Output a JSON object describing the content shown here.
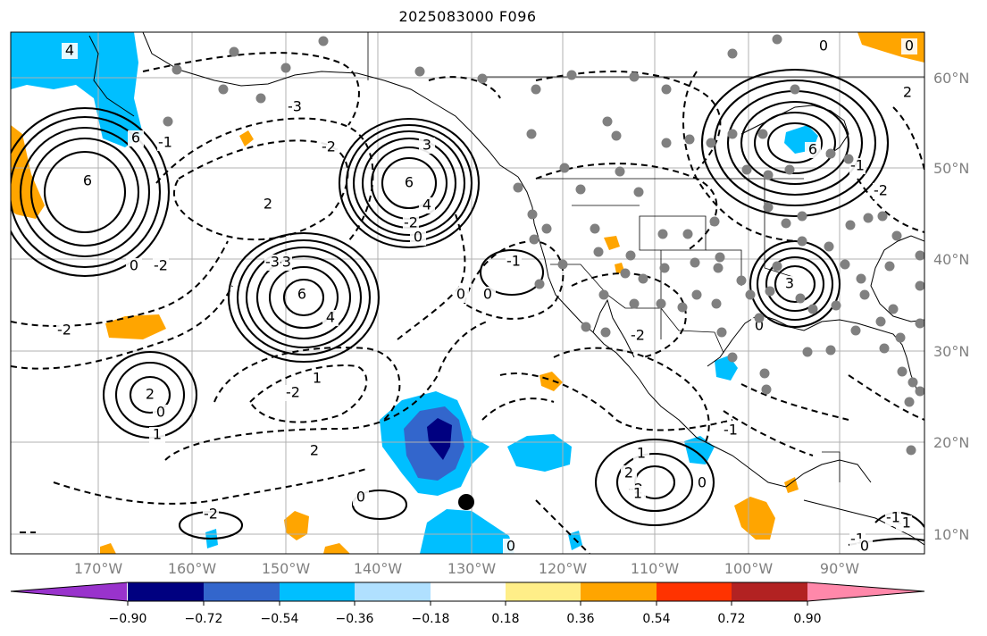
{
  "title": "2025083000 F096",
  "map": {
    "lon_ticks": [
      "170°W",
      "160°W",
      "150°W",
      "140°W",
      "130°W",
      "120°W",
      "110°W",
      "100°W",
      "90°W"
    ],
    "lat_ticks": [
      "60°N",
      "50°N",
      "40°N",
      "30°N",
      "20°N",
      "10°N"
    ],
    "contour_labels": [
      "4",
      "6",
      "6",
      "-1",
      "0",
      "-2",
      "2",
      "-3",
      "-3",
      "3",
      "6",
      "4",
      "-2",
      "0",
      "-2",
      "-3",
      "6",
      "4",
      "-1",
      "0",
      "-2",
      "0",
      "-2",
      "1",
      "2",
      "0",
      "1",
      "2",
      "0",
      "-2",
      "-2",
      "-1",
      "0",
      "-1",
      "1",
      "2",
      "0",
      "-2",
      "1",
      "3",
      "0",
      "-1",
      "6",
      "2",
      "-2",
      "0",
      "0",
      "-1",
      "-1",
      "0"
    ],
    "marker_color": "#000000",
    "station_color": "#808080"
  },
  "colorbar": {
    "colors": [
      "#9933cc",
      "#000080",
      "#3366cc",
      "#00bfff",
      "#b0e0ff",
      "#ffffff",
      "#ffee88",
      "#ffa500",
      "#ff3300",
      "#b22222",
      "#ff88aa"
    ],
    "tick_labels": [
      "−0.90",
      "−0.72",
      "−0.54",
      "−0.36",
      "−0.18",
      "0.18",
      "0.36",
      "0.54",
      "0.72",
      "0.90"
    ]
  }
}
